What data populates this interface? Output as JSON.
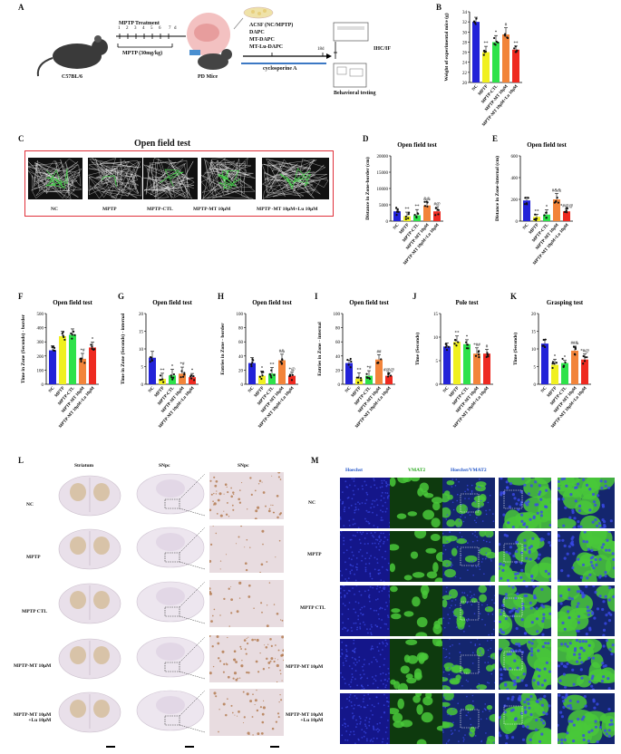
{
  "panels": {
    "A": "A",
    "B": "B",
    "C": "C",
    "D": "D",
    "E": "E",
    "F": "F",
    "G": "G",
    "H": "H",
    "I": "I",
    "J": "J",
    "K": "K",
    "L": "L",
    "M": "M"
  },
  "schematic": {
    "mouse_label": "C57BL/6",
    "mptp_treatment": "MPTP Treatment",
    "days": [
      "1",
      "2",
      "3",
      "4",
      "5",
      "6",
      "7"
    ],
    "day_unit": "d",
    "mptp_dose": "MPTP (30mg/kg)",
    "pd_mice": "PD Mice",
    "treatments": [
      "ACSF (NC/MPTP)",
      "DAPC",
      "MT-DAPC",
      "MT-Lu-DAPC"
    ],
    "duration": "18d",
    "immunosuppressant": "cyclosporine A",
    "ihc": "IHC/IF",
    "behavior": "Behavioral testing"
  },
  "groups": [
    "NC",
    "MPTP",
    "MPTP-CTL",
    "MPTP-MT 10μM",
    "MPTP-MT 10μM+Lu 10μM"
  ],
  "openfield": {
    "title": "Open field test",
    "labels": [
      "NC",
      "MPTP",
      "MPTP-CTL",
      "MPTP-MT 10μM",
      "MPTP -MT 10μM+Lu 10μM"
    ]
  },
  "colors": {
    "nc": "#2323d8",
    "mptp": "#f0f020",
    "ctl": "#2ee24a",
    "mt": "#f2843a",
    "lu": "#ee2a20",
    "frame": "#e0303a",
    "hoechst": "#1b1d8a",
    "vmat2": "#39c22a"
  },
  "chart_data": [
    {
      "id": "B",
      "type": "bar",
      "title": "",
      "ylabel": "Weight of experimental mice (g)",
      "categories": [
        "NC",
        "MPTP",
        "MPTP-CTL",
        "MPTP-MT 10μM",
        "MPTP-MT 10μM+Lu 10μM"
      ],
      "values": [
        32,
        26,
        28,
        29.5,
        26.5
      ],
      "ylim": [
        20,
        34
      ],
      "yticks": [
        20,
        22,
        24,
        26,
        28,
        30,
        32,
        34
      ],
      "sig": [
        "",
        "**",
        "*",
        "#",
        "**"
      ]
    },
    {
      "id": "D",
      "type": "bar",
      "title": "Open field test",
      "ylabel": "Distance in Zone-border (cm)",
      "categories": [
        "NC",
        "MPTP",
        "MPTP-CTL",
        "MPTP-MT 10μM",
        "MPTP-MT 10μM+Lu 10μM"
      ],
      "values": [
        3000,
        1500,
        1800,
        4800,
        3000
      ],
      "ylim": [
        0,
        20000
      ],
      "yticks": [
        0,
        5000,
        10000,
        15000,
        20000
      ],
      "sig": [
        "",
        "**",
        "**",
        "&&",
        "#@"
      ]
    },
    {
      "id": "E",
      "type": "bar",
      "title": "Open field test",
      "ylabel": "Distance in Zone-internal (cm)",
      "categories": [
        "NC",
        "MPTP",
        "MPTP-CTL",
        "MPTP-MT 10μM",
        "MPTP-MT 10μM+Lu 10μM"
      ],
      "values": [
        190,
        40,
        60,
        200,
        90
      ],
      "ylim": [
        0,
        600
      ],
      "yticks": [
        0,
        200,
        400,
        600
      ],
      "sig": [
        "",
        "**",
        "*",
        "#&&",
        "*#@@"
      ]
    },
    {
      "id": "F",
      "type": "bar",
      "title": "Open field test",
      "ylabel": "Time in Zone (Seconds) - border",
      "categories": [
        "NC",
        "MPTP",
        "MPTP-CTL",
        "MPTP-MT 10μM",
        "MPTP-MT 10μM+Lu 10μM"
      ],
      "values": [
        240,
        340,
        350,
        180,
        260
      ],
      "ylim": [
        0,
        500
      ],
      "yticks": [
        0,
        100,
        200,
        300,
        400,
        500
      ],
      "sig": [
        "",
        "",
        "",
        "*#",
        "*"
      ]
    },
    {
      "id": "G",
      "type": "bar",
      "title": "Open field test",
      "ylabel": "Time in Zone (Seconds) - internal",
      "categories": [
        "NC",
        "MPTP",
        "MPTP-CTL",
        "MPTP-MT 10μM",
        "MPTP-MT 10μM+Lu 10μM"
      ],
      "values": [
        7.5,
        1.5,
        2.5,
        3,
        2
      ],
      "ylim": [
        0,
        20
      ],
      "yticks": [
        0,
        5,
        10,
        15,
        20
      ],
      "sig": [
        "",
        "**",
        "*",
        "*#",
        "*"
      ]
    },
    {
      "id": "H",
      "type": "bar",
      "title": "Open field test",
      "ylabel": "Entries in Zone - border",
      "categories": [
        "NC",
        "MPTP",
        "MPTP-CTL",
        "MPTP-MT 10μM",
        "MPTP-MT 10μM+Lu 10μM"
      ],
      "values": [
        30,
        12,
        15,
        34,
        12
      ],
      "ylim": [
        0,
        100
      ],
      "yticks": [
        0,
        20,
        40,
        60,
        80,
        100
      ],
      "sig": [
        "",
        "*",
        "**",
        "#&",
        "*@"
      ]
    },
    {
      "id": "I",
      "type": "bar",
      "title": "Open field test",
      "ylabel": "Entries in Zone - internal",
      "categories": [
        "NC",
        "MPTP",
        "MPTP-CTL",
        "MPTP-MT 10μM",
        "MPTP-MT 10μM+Lu 10μM"
      ],
      "values": [
        30,
        8,
        12,
        35,
        12
      ],
      "ylim": [
        0,
        100
      ],
      "yticks": [
        0,
        20,
        40,
        60,
        80,
        100
      ],
      "sig": [
        "",
        "**",
        "*#",
        "##",
        "#@@"
      ]
    },
    {
      "id": "J",
      "type": "bar",
      "title": "Pole test",
      "ylabel": "Time (Seconds)",
      "categories": [
        "NC",
        "MPTP",
        "MPTP-CTL",
        "MPTP-MT 10μM",
        "MPTP-MT 10μM+Lu 10μM"
      ],
      "values": [
        8,
        9,
        8.5,
        6.5,
        6.5
      ],
      "ylim": [
        0,
        15
      ],
      "yticks": [
        0,
        5,
        10,
        15
      ],
      "sig": [
        "",
        "**",
        "*",
        "*##",
        "#"
      ]
    },
    {
      "id": "K",
      "type": "bar",
      "title": "Grasping test",
      "ylabel": "Time (Seconds)",
      "categories": [
        "NC",
        "MPTP",
        "MPTP-CTL",
        "MPTP-MT 10μM",
        "MPTP-MT 10μM+Lu 10μM"
      ],
      "values": [
        11.5,
        5.5,
        6,
        9.5,
        7
      ],
      "ylim": [
        0,
        20
      ],
      "yticks": [
        0,
        5,
        10,
        15,
        20
      ],
      "sig": [
        "",
        "*",
        "*",
        "##&",
        "*#@"
      ]
    }
  ],
  "histology": {
    "columns": [
      "Striatum",
      "SNpc",
      "SNpc"
    ],
    "rows": [
      "NC",
      "MPTP",
      "MPTP CTL",
      "MPTP-MT 10μM",
      "MPTP-MT 10μM\n+Lu 10μM"
    ]
  },
  "fluor": {
    "columns": [
      "Hoechst",
      "VMAT2",
      "Hoechst/VMAT2"
    ],
    "rows": [
      "NC",
      "MPTP",
      "MPTP CTL",
      "MPTP-MT 10μM",
      "MPTP-MT 10μM\n+Lu 10μM"
    ]
  }
}
